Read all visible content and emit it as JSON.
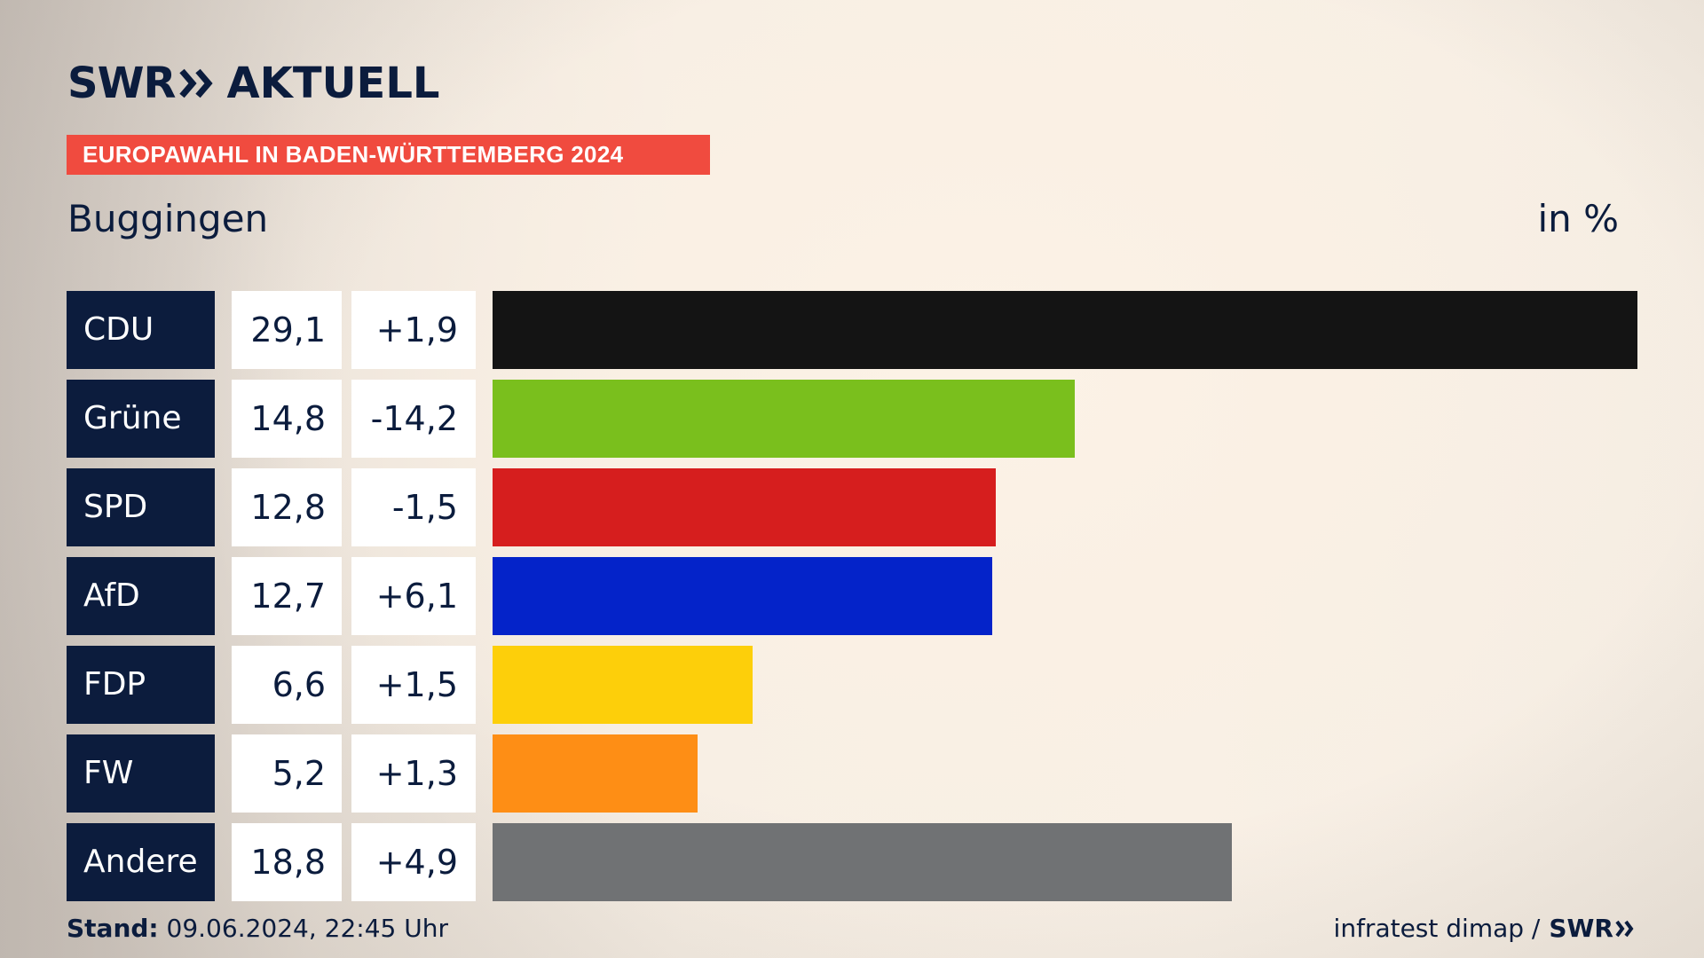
{
  "logo": {
    "brand": "SWR",
    "product": "AKTUELL",
    "chevron_icon": "double-chevron-right-icon"
  },
  "banner": {
    "text": "EUROPAWAHL IN BADEN-WÜRTTEMBERG 2024",
    "color": "#f04b3f"
  },
  "header": {
    "place": "Buggingen",
    "unit": "in %"
  },
  "footer": {
    "stand_label": "Stand:",
    "stand_value": "09.06.2024, 22:45 Uhr",
    "source": "infratest dimap /",
    "brand": "SWR"
  },
  "chart_data": {
    "type": "bar",
    "orientation": "horizontal",
    "categories": [
      "CDU",
      "Grüne",
      "SPD",
      "AfD",
      "FDP",
      "FW",
      "Andere"
    ],
    "values": [
      29.1,
      14.8,
      12.8,
      12.7,
      6.6,
      5.2,
      18.8
    ],
    "value_labels": [
      "29,1",
      "14,8",
      "12,8",
      "12,7",
      "6,6",
      "5,2",
      "18,8"
    ],
    "diff_labels": [
      "+1,9",
      "-14,2",
      "-1,5",
      "+6,1",
      "+1,5",
      "+1,3",
      "+4,9"
    ],
    "diffs": [
      1.9,
      -14.2,
      -1.5,
      6.1,
      1.5,
      1.3,
      4.9
    ],
    "colors": [
      "#141414",
      "#7abf1d",
      "#d61e1e",
      "#0423c9",
      "#fdcf0a",
      "#fe8e15",
      "#707274"
    ],
    "xlim": [
      0,
      29.1
    ],
    "grid": false,
    "legend": "none"
  }
}
